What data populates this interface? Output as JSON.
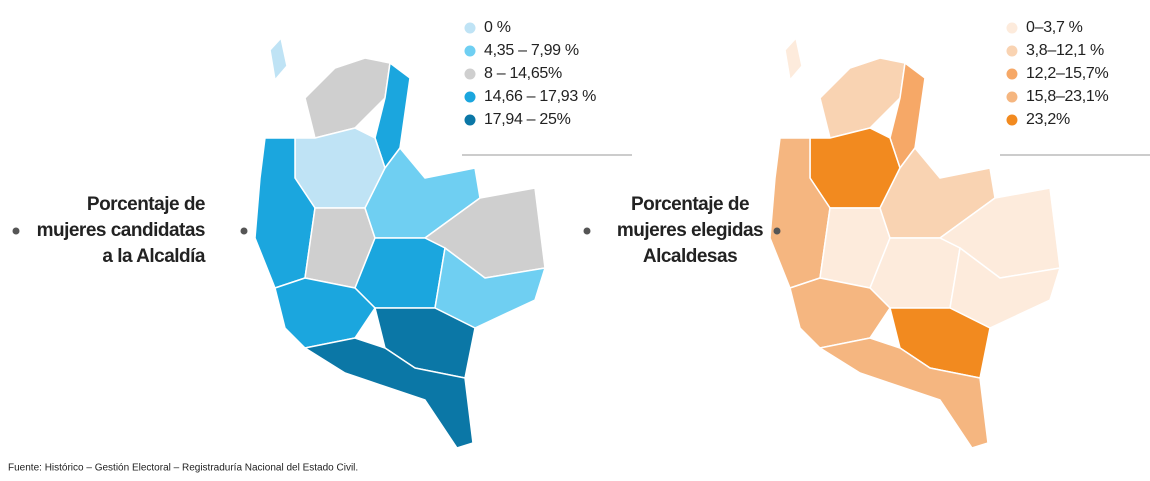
{
  "maps": [
    {
      "title": [
        "Porcentaje de",
        "mujeres candidatas",
        "a la Alcaldía"
      ],
      "legend": [
        {
          "label": "0 %",
          "color": "#bfe3f5"
        },
        {
          "label": "4,35 – 7,99 %",
          "color": "#6fcff2"
        },
        {
          "label": "8 – 14,65%",
          "color": "#cfcfcf"
        },
        {
          "label": "14,66 – 17,93 %",
          "color": "#1ba6de"
        },
        {
          "label": "17,94 – 25%",
          "color": "#0b77a6"
        }
      ]
    },
    {
      "title": [
        "Porcentaje de",
        "mujeres elegidas",
        "Alcaldesas"
      ],
      "legend": [
        {
          "label": "0–3,7 %",
          "color": "#fdebdc"
        },
        {
          "label": "3,8–12,1 %",
          "color": "#f9d3b2"
        },
        {
          "label": "12,2–15,7%",
          "color": "#f6a867"
        },
        {
          "label": "15,8–23,1%",
          "color": "#f5b680"
        },
        {
          "label": "23,2%",
          "color": "#f28a1f"
        }
      ]
    }
  ],
  "source": "Fuente: Histórico – Gestión Electoral – Registraduría Nacional del Estado Civil."
}
